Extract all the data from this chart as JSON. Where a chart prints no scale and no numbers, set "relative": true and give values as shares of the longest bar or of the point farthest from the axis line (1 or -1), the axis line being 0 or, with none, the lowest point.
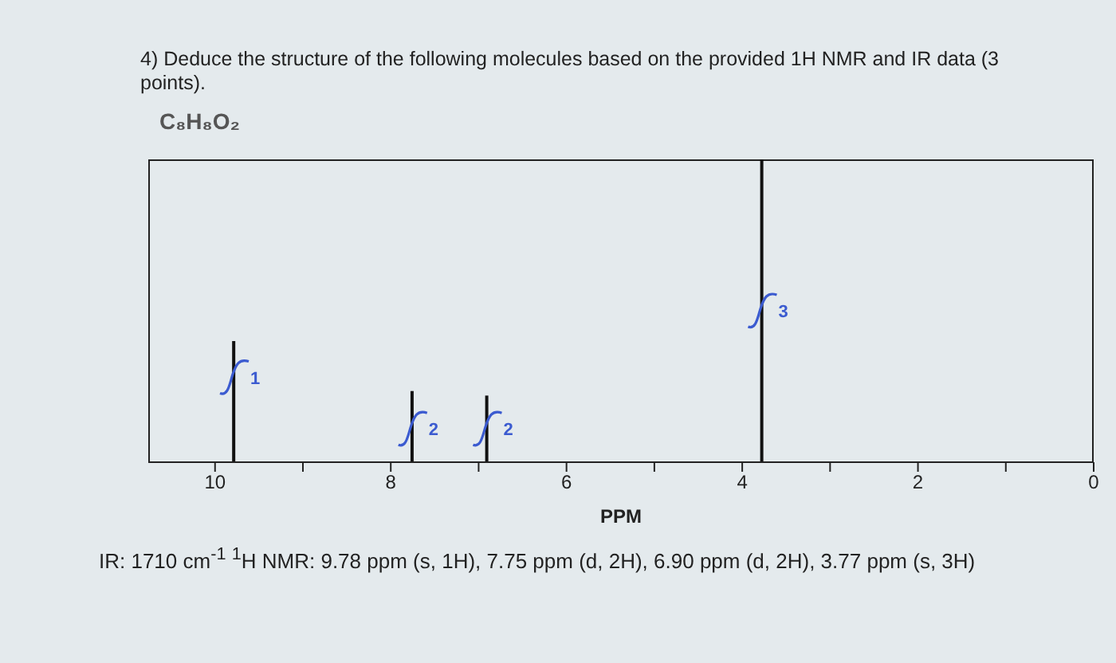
{
  "chart_data": {
    "type": "bar",
    "title": "4) Deduce the structure of the following molecules based on the provided 1H NMR and IR data (3 points).",
    "subtitle": "C₈H₈O₂",
    "xlabel": "PPM",
    "x": [
      9.78,
      7.75,
      6.9,
      3.77
    ],
    "values": [
      0.4,
      0.235,
      0.22,
      1
    ],
    "color": "#111111",
    "relative": true,
    "xlim": [
      10.76,
      0
    ],
    "xticks": [
      10,
      {
        "value": 9,
        "label": null
      },
      8,
      {
        "value": 7,
        "label": null
      },
      6,
      {
        "value": 5,
        "label": null
      },
      4,
      {
        "value": 3,
        "label": null
      },
      2,
      {
        "value": 1,
        "label": null
      },
      0
    ],
    "grid": false,
    "legend": false,
    "annotations": [
      {
        "text": "1",
        "x": 9.78,
        "y": 0.28
      },
      {
        "text": "2",
        "x": 7.75,
        "y": 0.11
      },
      {
        "text": "2",
        "x": 6.9,
        "y": 0.11
      },
      {
        "text": "3",
        "x": 3.77,
        "y": 0.5
      },
      "IR: 1710 cm$^{-1}$ $^{1}$H NMR: 9.78 ppm (s, 1H), 7.75 ppm (d, 2H), 6.90 ppm (d, 2H), 3.77 ppm (s, 3H)"
    ]
  }
}
